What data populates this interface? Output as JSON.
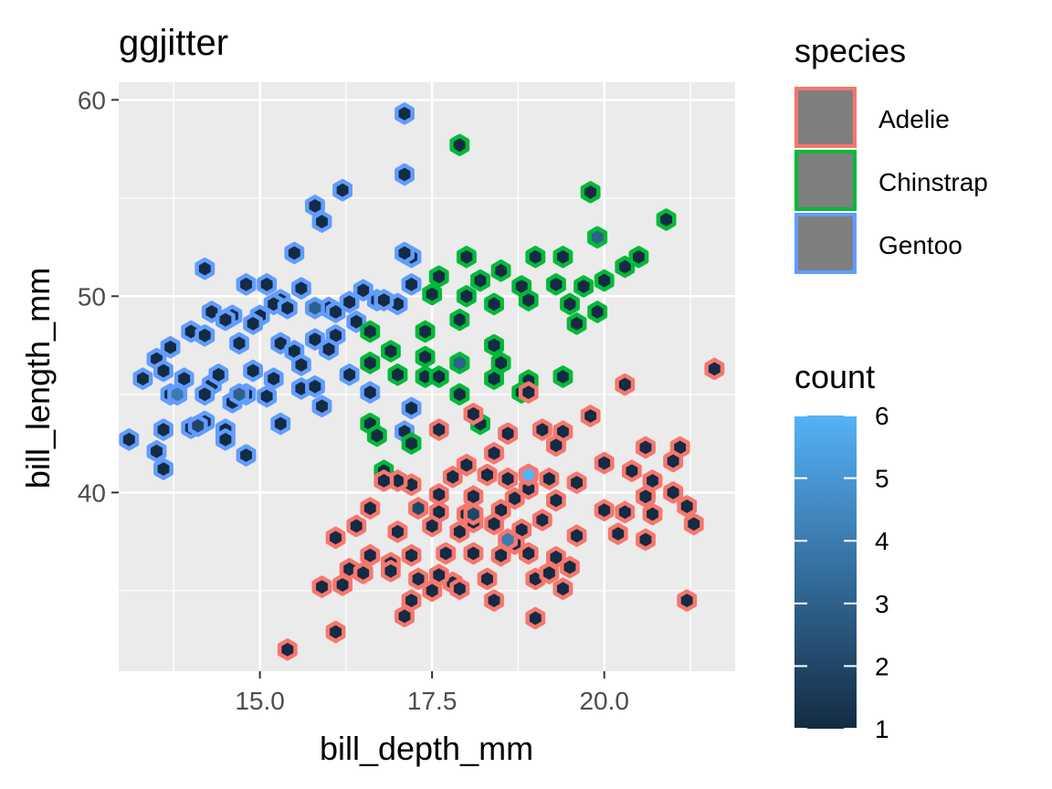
{
  "chart_data": {
    "type": "scatter",
    "title": "ggjitter",
    "xlabel": "bill_depth_mm",
    "ylabel": "bill_length_mm",
    "xlim": [
      12.95,
      21.9
    ],
    "ylim": [
      30.9,
      60.9
    ],
    "x_ticks": [
      15.0,
      17.5,
      20.0
    ],
    "x_tick_labels": [
      "15.0",
      "17.5",
      "20.0"
    ],
    "y_ticks": [
      40,
      50,
      60
    ],
    "y_tick_labels": [
      "40",
      "50",
      "60"
    ],
    "grid": true,
    "legend_position": "right",
    "species_legend": {
      "title": "species",
      "entries": [
        {
          "label": "Adelie",
          "color": "#F8766D"
        },
        {
          "label": "Chinstrap",
          "color": "#00BA38"
        },
        {
          "label": "Gentoo",
          "color": "#619CFF"
        }
      ]
    },
    "count_legend": {
      "title": "count",
      "ticks": [
        1,
        2,
        3,
        4,
        5,
        6
      ],
      "tick_labels": [
        "1",
        "2",
        "3",
        "4",
        "5",
        "6"
      ],
      "low_color": "#132B43",
      "high_color": "#56B1F7"
    },
    "series": [
      {
        "name": "Gentoo",
        "points": [
          [
            17.1,
            59.3
          ],
          [
            17.1,
            56.2
          ],
          [
            15.8,
            54.6
          ],
          [
            15.9,
            53.8
          ],
          [
            16.2,
            55.4
          ],
          [
            15.5,
            52.2
          ],
          [
            14.2,
            51.4
          ],
          [
            16.5,
            50.3
          ],
          [
            15.6,
            50.4
          ],
          [
            15.1,
            50.6
          ],
          [
            14.8,
            50.6
          ],
          [
            15.3,
            49.8
          ],
          [
            15.2,
            49.6
          ],
          [
            15.4,
            49.4
          ],
          [
            15.0,
            49.0
          ],
          [
            14.6,
            49.0
          ],
          [
            14.3,
            49.2
          ],
          [
            14.5,
            48.8
          ],
          [
            14.9,
            48.6
          ],
          [
            14.0,
            48.2
          ],
          [
            14.2,
            48.0
          ],
          [
            14.7,
            47.6
          ],
          [
            15.3,
            47.6
          ],
          [
            15.5,
            47.2
          ],
          [
            15.8,
            47.8
          ],
          [
            16.1,
            48.0
          ],
          [
            16.4,
            48.7
          ],
          [
            16.0,
            49.4
          ],
          [
            16.1,
            49.2
          ],
          [
            16.3,
            49.7
          ],
          [
            16.7,
            49.8
          ],
          [
            17.0,
            49.6
          ],
          [
            17.2,
            50.6
          ],
          [
            17.2,
            52.0
          ],
          [
            17.1,
            52.2
          ],
          [
            13.7,
            47.4
          ],
          [
            13.5,
            46.8
          ],
          [
            13.6,
            46.2
          ],
          [
            13.3,
            45.8
          ],
          [
            13.9,
            45.8
          ],
          [
            14.3,
            45.5
          ],
          [
            14.2,
            45.0
          ],
          [
            14.6,
            44.6
          ],
          [
            14.8,
            45.0
          ],
          [
            15.1,
            44.9
          ],
          [
            15.2,
            45.8
          ],
          [
            15.6,
            45.3
          ],
          [
            15.8,
            45.4
          ],
          [
            16.3,
            46.0
          ],
          [
            16.6,
            46.6
          ],
          [
            16.6,
            45.1
          ],
          [
            15.9,
            44.4
          ],
          [
            15.3,
            43.5
          ],
          [
            14.5,
            43.2
          ],
          [
            14.2,
            43.6
          ],
          [
            14.0,
            43.3
          ],
          [
            14.5,
            42.7
          ],
          [
            14.8,
            41.9
          ],
          [
            13.6,
            43.2
          ],
          [
            13.5,
            42.1
          ],
          [
            13.6,
            41.2
          ],
          [
            13.1,
            42.7
          ],
          [
            13.7,
            45.0
          ],
          [
            14.4,
            46.0
          ],
          [
            14.9,
            46.2
          ],
          [
            15.6,
            46.5
          ],
          [
            16.0,
            47.3
          ],
          [
            16.8,
            49.8
          ],
          [
            17.2,
            44.3
          ],
          [
            17.1,
            43.1
          ]
        ]
      },
      {
        "name": "Chinstrap",
        "points": [
          [
            17.9,
            57.7
          ],
          [
            19.8,
            55.3
          ],
          [
            20.9,
            53.9
          ],
          [
            19.9,
            53.0
          ],
          [
            18.0,
            52.0
          ],
          [
            18.5,
            51.3
          ],
          [
            19.0,
            52.0
          ],
          [
            19.4,
            52.0
          ],
          [
            20.3,
            51.5
          ],
          [
            20.5,
            52.0
          ],
          [
            17.6,
            51.0
          ],
          [
            18.2,
            50.8
          ],
          [
            18.8,
            50.5
          ],
          [
            19.3,
            50.6
          ],
          [
            19.7,
            50.5
          ],
          [
            20.0,
            50.8
          ],
          [
            17.5,
            50.1
          ],
          [
            18.0,
            50.0
          ],
          [
            18.4,
            49.6
          ],
          [
            18.9,
            49.8
          ],
          [
            19.5,
            49.6
          ],
          [
            19.9,
            49.2
          ],
          [
            17.9,
            48.8
          ],
          [
            19.6,
            48.6
          ],
          [
            17.4,
            48.2
          ],
          [
            16.6,
            48.2
          ],
          [
            16.9,
            47.2
          ],
          [
            17.4,
            46.9
          ],
          [
            18.4,
            47.5
          ],
          [
            18.5,
            46.6
          ],
          [
            16.6,
            46.6
          ],
          [
            17.0,
            46.0
          ],
          [
            17.4,
            45.9
          ],
          [
            17.6,
            45.9
          ],
          [
            18.4,
            45.8
          ],
          [
            18.9,
            45.7
          ],
          [
            19.4,
            45.9
          ],
          [
            18.8,
            45.1
          ],
          [
            17.9,
            45.0
          ],
          [
            18.2,
            43.5
          ],
          [
            16.6,
            43.5
          ],
          [
            16.7,
            42.9
          ],
          [
            17.2,
            42.5
          ],
          [
            16.8,
            41.1
          ],
          [
            17.9,
            46.6
          ]
        ]
      },
      {
        "name": "Adelie",
        "points": [
          [
            21.6,
            46.3
          ],
          [
            20.3,
            45.5
          ],
          [
            19.8,
            43.9
          ],
          [
            18.9,
            45.1
          ],
          [
            18.1,
            44.0
          ],
          [
            17.6,
            43.2
          ],
          [
            18.6,
            43.0
          ],
          [
            19.1,
            43.2
          ],
          [
            19.4,
            43.1
          ],
          [
            19.3,
            42.4
          ],
          [
            20.6,
            42.3
          ],
          [
            21.1,
            42.3
          ],
          [
            20.0,
            41.5
          ],
          [
            20.4,
            41.1
          ],
          [
            21.0,
            41.6
          ],
          [
            18.4,
            42.0
          ],
          [
            18.0,
            41.4
          ],
          [
            17.8,
            40.8
          ],
          [
            18.3,
            40.9
          ],
          [
            18.6,
            40.7
          ],
          [
            18.9,
            40.9
          ],
          [
            19.2,
            40.7
          ],
          [
            17.2,
            40.4
          ],
          [
            17.0,
            40.6
          ],
          [
            16.8,
            40.6
          ],
          [
            17.6,
            39.9
          ],
          [
            18.1,
            39.8
          ],
          [
            18.7,
            39.7
          ],
          [
            19.3,
            39.6
          ],
          [
            20.6,
            39.8
          ],
          [
            21.0,
            40.0
          ],
          [
            17.3,
            39.2
          ],
          [
            17.6,
            39.0
          ],
          [
            18.0,
            38.9
          ],
          [
            18.5,
            39.1
          ],
          [
            19.1,
            38.6
          ],
          [
            20.0,
            39.1
          ],
          [
            20.3,
            39.0
          ],
          [
            20.7,
            38.9
          ],
          [
            21.2,
            39.3
          ],
          [
            16.6,
            39.2
          ],
          [
            16.4,
            38.3
          ],
          [
            17.0,
            38.0
          ],
          [
            17.5,
            38.3
          ],
          [
            17.9,
            38.0
          ],
          [
            18.4,
            38.4
          ],
          [
            18.8,
            38.1
          ],
          [
            19.6,
            37.8
          ],
          [
            20.2,
            37.9
          ],
          [
            20.6,
            37.6
          ],
          [
            21.3,
            38.4
          ],
          [
            16.1,
            37.7
          ],
          [
            16.6,
            36.8
          ],
          [
            16.9,
            36.4
          ],
          [
            17.2,
            36.8
          ],
          [
            17.7,
            36.9
          ],
          [
            18.1,
            36.9
          ],
          [
            18.5,
            36.8
          ],
          [
            18.9,
            36.9
          ],
          [
            19.3,
            36.7
          ],
          [
            19.5,
            36.2
          ],
          [
            16.3,
            36.1
          ],
          [
            16.9,
            36.0
          ],
          [
            17.3,
            35.6
          ],
          [
            17.8,
            35.4
          ],
          [
            18.3,
            35.6
          ],
          [
            19.0,
            35.6
          ],
          [
            19.4,
            35.1
          ],
          [
            15.9,
            35.2
          ],
          [
            16.2,
            35.3
          ],
          [
            17.5,
            35.0
          ],
          [
            17.9,
            35.1
          ],
          [
            18.4,
            34.5
          ],
          [
            17.2,
            34.5
          ],
          [
            17.1,
            33.7
          ],
          [
            19.0,
            33.6
          ],
          [
            21.2,
            34.5
          ],
          [
            16.1,
            32.9
          ],
          [
            15.4,
            32.0
          ],
          [
            17.6,
            35.8
          ],
          [
            16.5,
            35.9
          ],
          [
            19.2,
            35.9
          ],
          [
            18.7,
            37.4
          ],
          [
            18.1,
            38.5
          ],
          [
            18.9,
            40.2
          ],
          [
            19.6,
            40.5
          ],
          [
            20.7,
            40.6
          ]
        ]
      }
    ],
    "highlight_counts": [
      {
        "species": "Gentoo",
        "x": 15.8,
        "y": 49.4,
        "count": 3
      },
      {
        "species": "Gentoo",
        "x": 13.8,
        "y": 45.0,
        "count": 4
      },
      {
        "species": "Gentoo",
        "x": 14.7,
        "y": 45.0,
        "count": 3
      },
      {
        "species": "Gentoo",
        "x": 14.1,
        "y": 43.4,
        "count": 2
      },
      {
        "species": "Chinstrap",
        "x": 17.9,
        "y": 46.6,
        "count": 3
      },
      {
        "species": "Chinstrap",
        "x": 19.9,
        "y": 53.0,
        "count": 3
      },
      {
        "species": "Adelie",
        "x": 18.9,
        "y": 40.9,
        "count": 6
      },
      {
        "species": "Adelie",
        "x": 18.6,
        "y": 37.6,
        "count": 4
      },
      {
        "species": "Adelie",
        "x": 17.3,
        "y": 39.2,
        "count": 2
      },
      {
        "species": "Adelie",
        "x": 18.1,
        "y": 38.9,
        "count": 2
      }
    ]
  }
}
